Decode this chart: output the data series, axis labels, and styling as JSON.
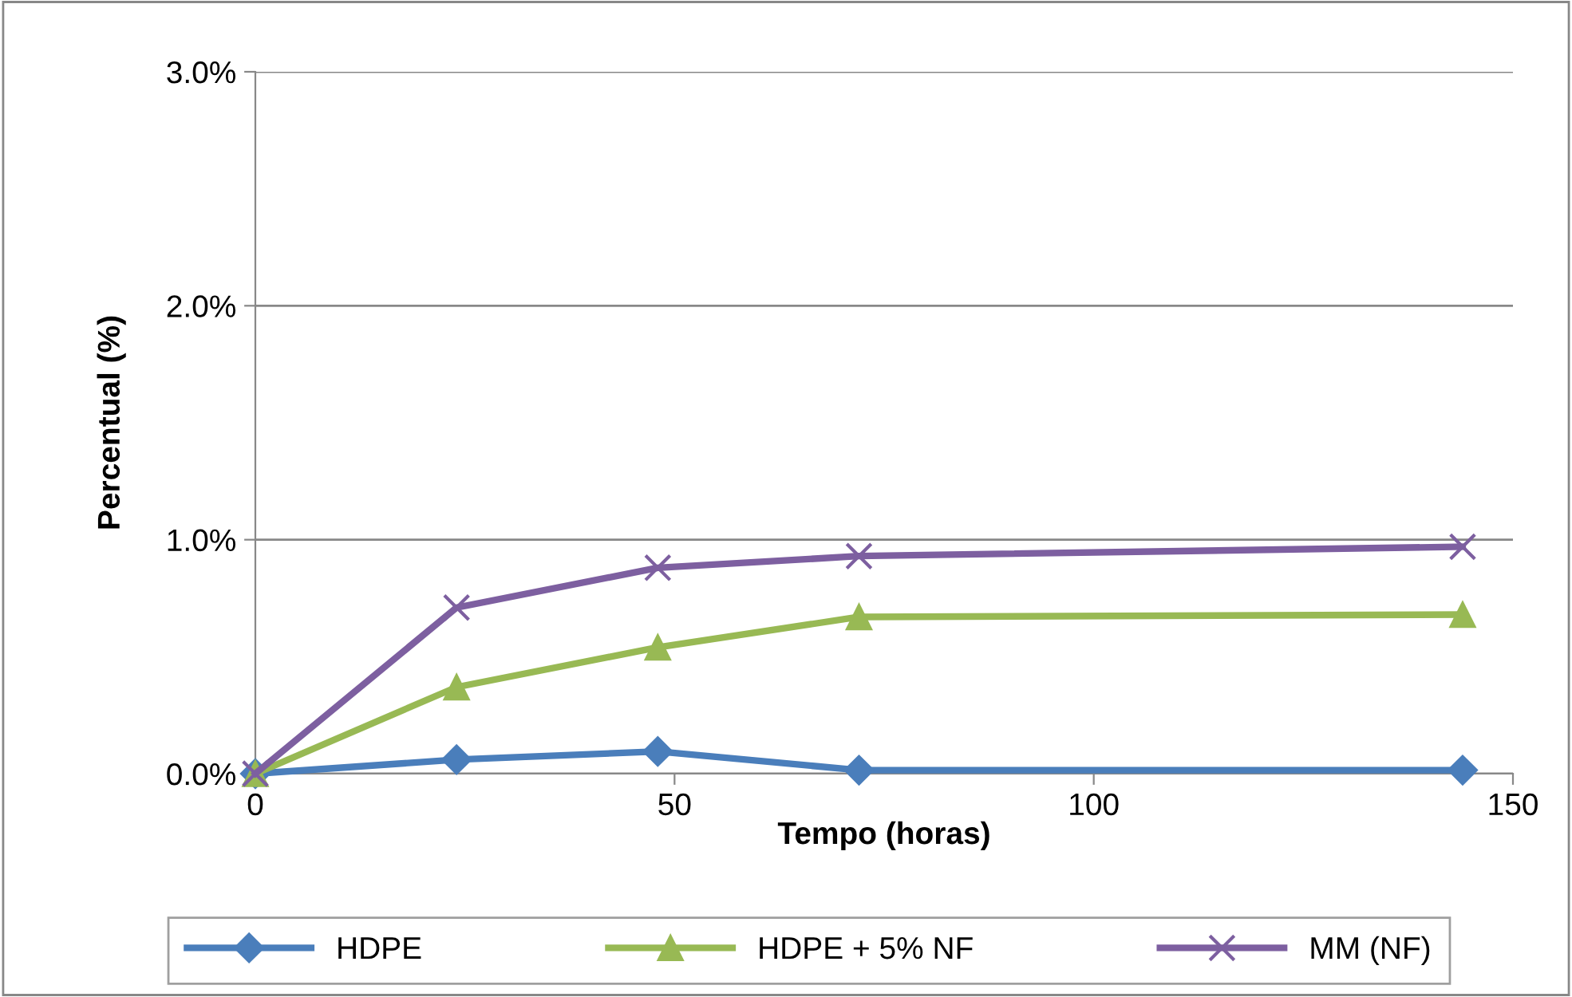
{
  "chart_data": {
    "type": "line",
    "xlabel": "Tempo (horas)",
    "ylabel": "Percentual (%)",
    "x": [
      0,
      24,
      48,
      72,
      144
    ],
    "series": [
      {
        "name": "HDPE",
        "color": "#4a7ebb",
        "marker": "diamond",
        "values": [
          0,
          0.06,
          0.095,
          0.015,
          0.015
        ]
      },
      {
        "name": "HDPE + 5% NF",
        "color": "#98b954",
        "marker": "triangle",
        "values": [
          0,
          0.37,
          0.54,
          0.67,
          0.68
        ]
      },
      {
        "name": "MM (NF)",
        "color": "#7d5fa0",
        "marker": "cross",
        "values": [
          0,
          0.71,
          0.88,
          0.93,
          0.97
        ]
      }
    ],
    "xlim": [
      0,
      150
    ],
    "xticks": [
      0,
      50,
      100,
      150
    ],
    "ylim": [
      0,
      3
    ],
    "yticks": [
      {
        "value": 0,
        "label": "0.0%"
      },
      {
        "value": 1,
        "label": "1.0%"
      },
      {
        "value": 2,
        "label": "2.0%"
      },
      {
        "value": 3,
        "label": "3.0%"
      }
    ],
    "grid": "y",
    "legend": "bottom",
    "line_style": "solid"
  }
}
